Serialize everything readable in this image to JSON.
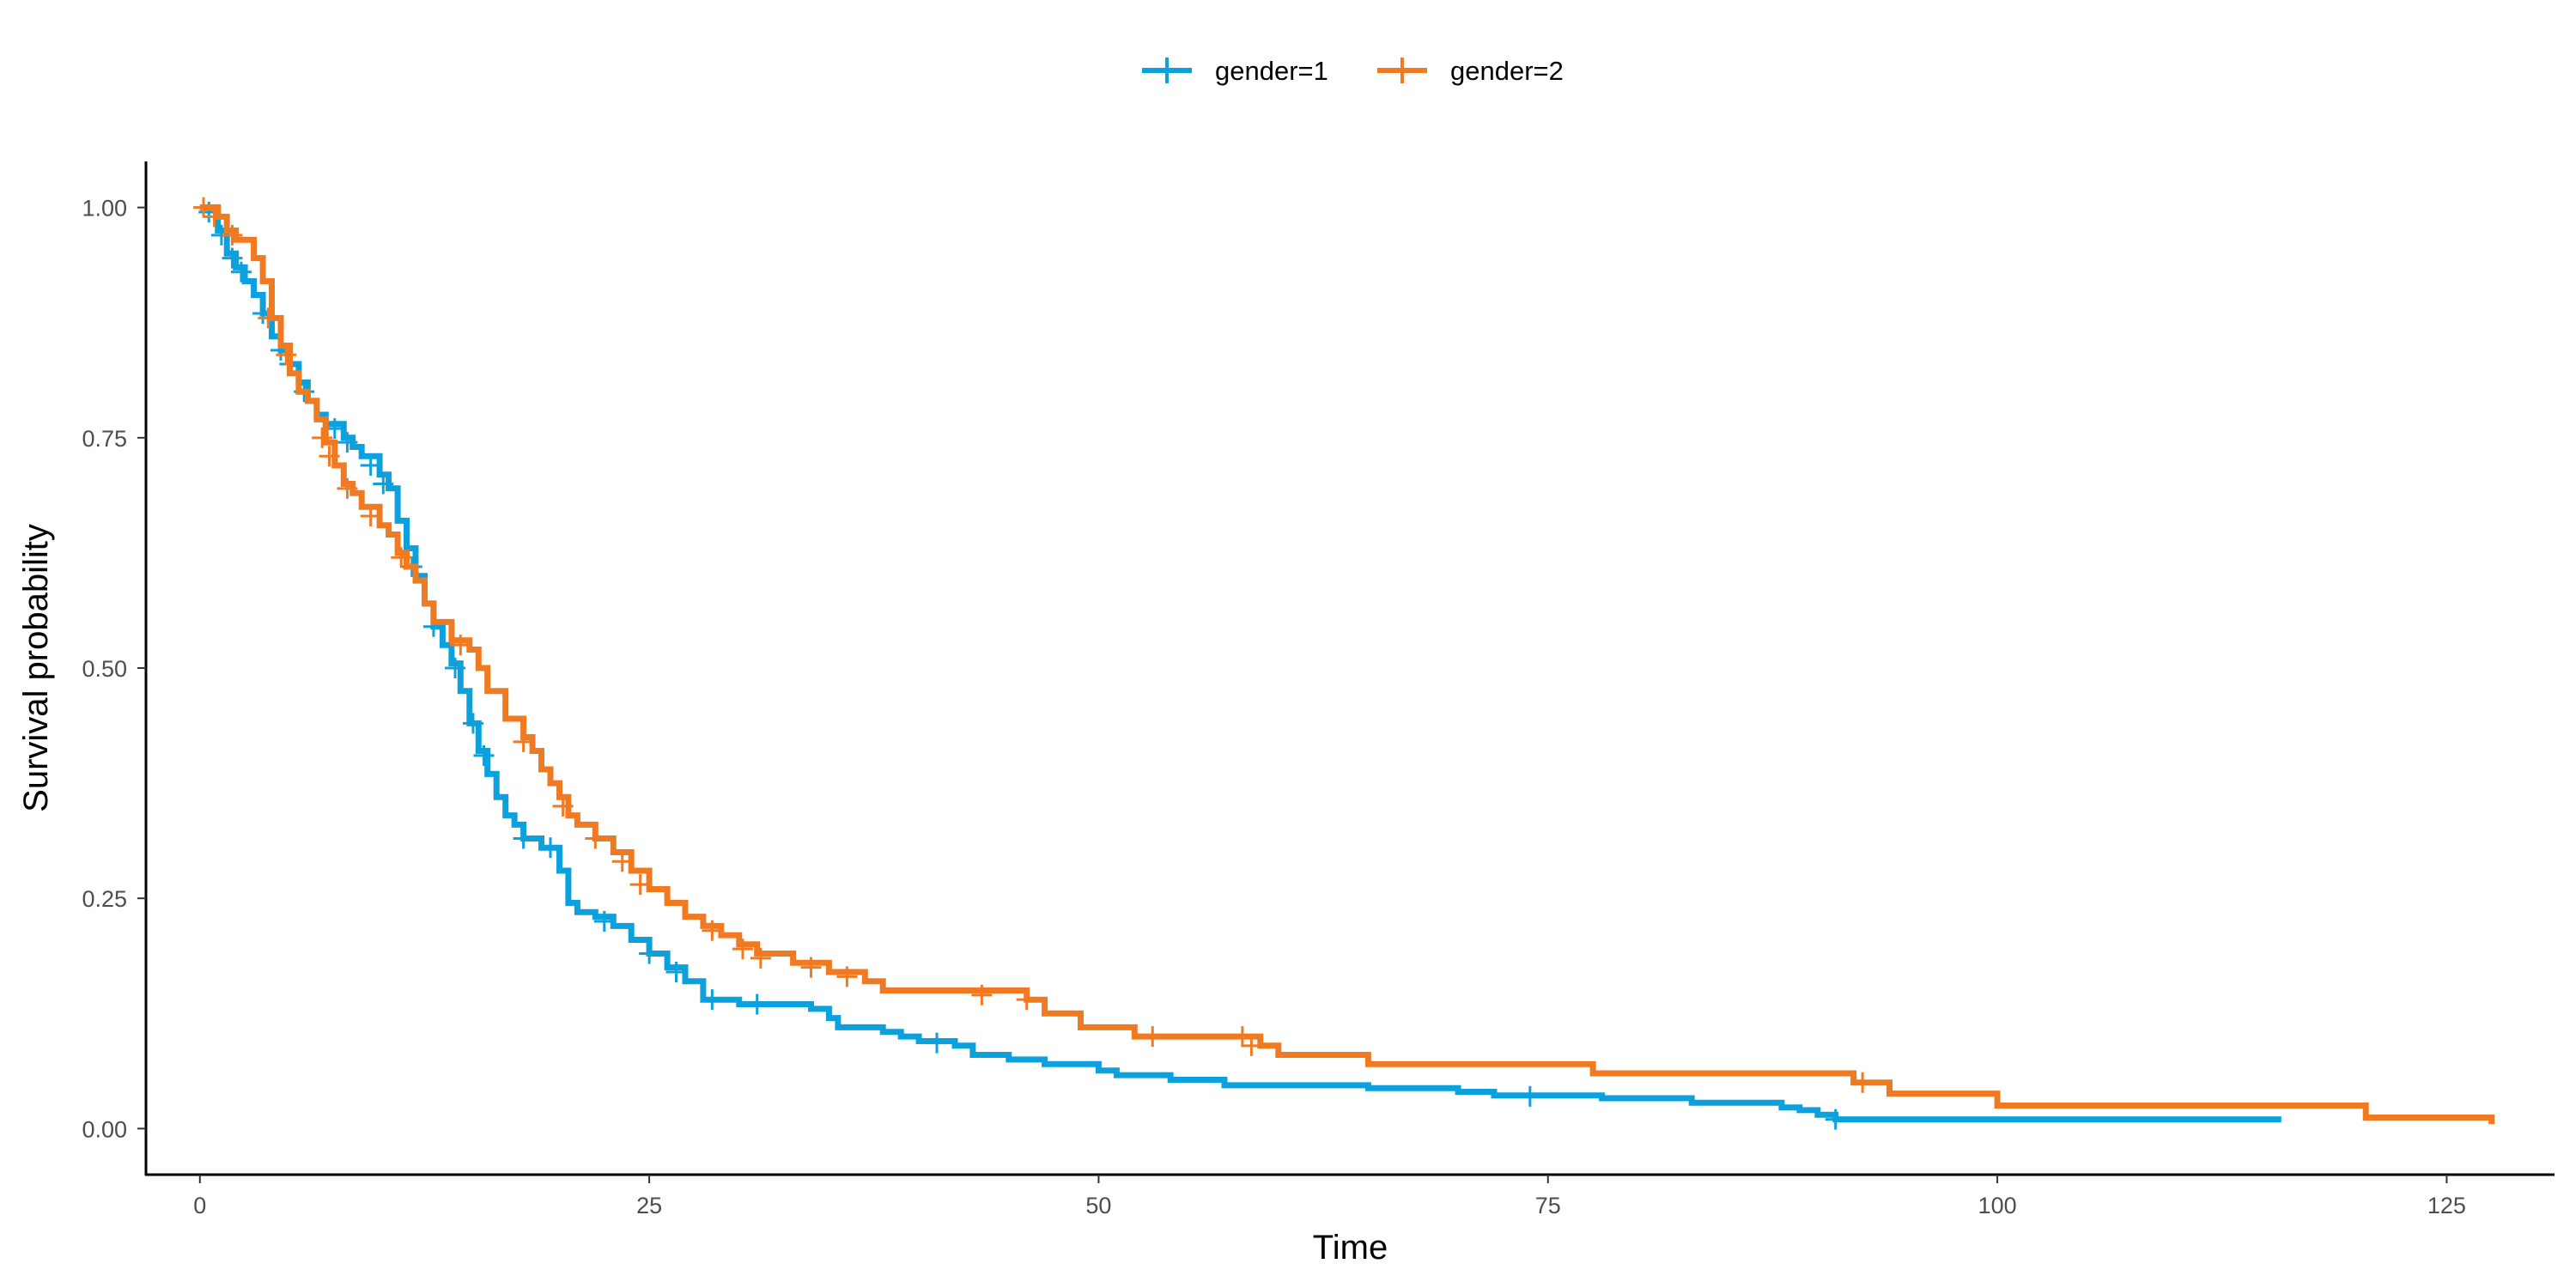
{
  "chart_data": {
    "type": "line",
    "subtype": "kaplan-meier step",
    "xlabel": "Time",
    "ylabel": "Survival probability",
    "xlim": [
      -3,
      131
    ],
    "ylim": [
      -0.05,
      1.05
    ],
    "xticks": [
      0,
      25,
      50,
      75,
      100,
      125
    ],
    "yticks": [
      0,
      0.25,
      0.5,
      0.75,
      1.0
    ],
    "ytick_labels": [
      "0.00",
      "0.25",
      "0.50",
      "0.75",
      "1.00"
    ],
    "grid": false,
    "legend": {
      "position": "top",
      "entries": [
        "gender=1",
        "gender=2"
      ]
    },
    "series": [
      {
        "name": "gender=1",
        "color": "#0CA1DD",
        "points": [
          [
            0,
            1.0
          ],
          [
            1,
            0.975
          ],
          [
            1.5,
            0.95
          ],
          [
            2,
            0.935
          ],
          [
            2.5,
            0.92
          ],
          [
            3,
            0.905
          ],
          [
            3.5,
            0.885
          ],
          [
            4,
            0.86
          ],
          [
            4.5,
            0.845
          ],
          [
            5,
            0.83
          ],
          [
            5.5,
            0.81
          ],
          [
            6,
            0.79
          ],
          [
            6.5,
            0.775
          ],
          [
            7,
            0.765
          ],
          [
            8,
            0.75
          ],
          [
            8.5,
            0.74
          ],
          [
            9,
            0.73
          ],
          [
            10,
            0.71
          ],
          [
            10.5,
            0.695
          ],
          [
            11,
            0.66
          ],
          [
            11.5,
            0.63
          ],
          [
            12,
            0.6
          ],
          [
            12.5,
            0.57
          ],
          [
            13,
            0.545
          ],
          [
            13.5,
            0.525
          ],
          [
            14,
            0.505
          ],
          [
            14.5,
            0.475
          ],
          [
            15,
            0.44
          ],
          [
            15.5,
            0.41
          ],
          [
            16,
            0.385
          ],
          [
            16.5,
            0.36
          ],
          [
            17,
            0.34
          ],
          [
            17.5,
            0.33
          ],
          [
            18,
            0.315
          ],
          [
            19,
            0.305
          ],
          [
            20,
            0.28
          ],
          [
            20.5,
            0.245
          ],
          [
            21,
            0.235
          ],
          [
            22,
            0.23
          ],
          [
            23,
            0.22
          ],
          [
            24,
            0.205
          ],
          [
            25,
            0.19
          ],
          [
            26,
            0.175
          ],
          [
            27,
            0.16
          ],
          [
            28,
            0.14
          ],
          [
            30,
            0.135
          ],
          [
            34,
            0.13
          ],
          [
            35,
            0.12
          ],
          [
            35.5,
            0.11
          ],
          [
            38,
            0.105
          ],
          [
            39,
            0.1
          ],
          [
            40,
            0.095
          ],
          [
            42,
            0.09
          ],
          [
            43,
            0.08
          ],
          [
            45,
            0.075
          ],
          [
            47,
            0.07
          ],
          [
            50,
            0.063
          ],
          [
            51,
            0.058
          ],
          [
            54,
            0.053
          ],
          [
            57,
            0.047
          ],
          [
            65,
            0.044
          ],
          [
            70,
            0.04
          ],
          [
            72,
            0.036
          ],
          [
            78,
            0.033
          ],
          [
            83,
            0.028
          ],
          [
            88,
            0.023
          ],
          [
            89,
            0.02
          ],
          [
            90,
            0.015
          ],
          [
            91,
            0.01
          ],
          [
            115.8,
            0.01
          ]
        ],
        "censored": [
          [
            0.5,
            0.995
          ],
          [
            1.2,
            0.97
          ],
          [
            1.8,
            0.945
          ],
          [
            2.3,
            0.93
          ],
          [
            3.5,
            0.885
          ],
          [
            4.5,
            0.845
          ],
          [
            5,
            0.83
          ],
          [
            5.8,
            0.8
          ],
          [
            7.5,
            0.76
          ],
          [
            8.2,
            0.745
          ],
          [
            9.5,
            0.72
          ],
          [
            10.2,
            0.7
          ],
          [
            11.8,
            0.61
          ],
          [
            13,
            0.545
          ],
          [
            14.2,
            0.5
          ],
          [
            15.2,
            0.44
          ],
          [
            15.8,
            0.405
          ],
          [
            18,
            0.315
          ],
          [
            19.5,
            0.305
          ],
          [
            22.5,
            0.225
          ],
          [
            25,
            0.19
          ],
          [
            26.5,
            0.17
          ],
          [
            28.5,
            0.14
          ],
          [
            31,
            0.135
          ],
          [
            41,
            0.093
          ],
          [
            74,
            0.035
          ],
          [
            91,
            0.01
          ]
        ]
      },
      {
        "name": "gender=2",
        "color": "#EF7A22",
        "points": [
          [
            0,
            1.0
          ],
          [
            1,
            0.99
          ],
          [
            1.5,
            0.975
          ],
          [
            2,
            0.965
          ],
          [
            3,
            0.945
          ],
          [
            3.5,
            0.92
          ],
          [
            4,
            0.88
          ],
          [
            4.5,
            0.85
          ],
          [
            5,
            0.82
          ],
          [
            5.5,
            0.8
          ],
          [
            6,
            0.79
          ],
          [
            6.5,
            0.77
          ],
          [
            7,
            0.745
          ],
          [
            7.5,
            0.72
          ],
          [
            8,
            0.7
          ],
          [
            8.5,
            0.69
          ],
          [
            9,
            0.675
          ],
          [
            10,
            0.655
          ],
          [
            10.5,
            0.645
          ],
          [
            11,
            0.625
          ],
          [
            11.5,
            0.61
          ],
          [
            12,
            0.595
          ],
          [
            12.5,
            0.57
          ],
          [
            13,
            0.55
          ],
          [
            14,
            0.53
          ],
          [
            15,
            0.52
          ],
          [
            15.5,
            0.5
          ],
          [
            16,
            0.475
          ],
          [
            17,
            0.445
          ],
          [
            18,
            0.425
          ],
          [
            18.5,
            0.41
          ],
          [
            19,
            0.39
          ],
          [
            19.5,
            0.375
          ],
          [
            20,
            0.36
          ],
          [
            20.5,
            0.34
          ],
          [
            21,
            0.33
          ],
          [
            22,
            0.315
          ],
          [
            23,
            0.3
          ],
          [
            24,
            0.28
          ],
          [
            25,
            0.26
          ],
          [
            26,
            0.245
          ],
          [
            27,
            0.23
          ],
          [
            28,
            0.22
          ],
          [
            29,
            0.21
          ],
          [
            30,
            0.2
          ],
          [
            31,
            0.19
          ],
          [
            33,
            0.18
          ],
          [
            35,
            0.17
          ],
          [
            37,
            0.16
          ],
          [
            38,
            0.15
          ],
          [
            46,
            0.14
          ],
          [
            47,
            0.125
          ],
          [
            49,
            0.11
          ],
          [
            52,
            0.1
          ],
          [
            59,
            0.09
          ],
          [
            60,
            0.08
          ],
          [
            65,
            0.07
          ],
          [
            77.5,
            0.06
          ],
          [
            92,
            0.05
          ],
          [
            94,
            0.038
          ],
          [
            100,
            0.025
          ],
          [
            120.5,
            0.012
          ],
          [
            127.5,
            0.005
          ]
        ],
        "censored": [
          [
            0.2,
            1.0
          ],
          [
            0.8,
            0.99
          ],
          [
            1.8,
            0.97
          ],
          [
            3.8,
            0.88
          ],
          [
            4.8,
            0.84
          ],
          [
            6.8,
            0.75
          ],
          [
            7.2,
            0.73
          ],
          [
            8.2,
            0.695
          ],
          [
            9.5,
            0.665
          ],
          [
            11.2,
            0.62
          ],
          [
            14.5,
            0.525
          ],
          [
            18,
            0.42
          ],
          [
            20.2,
            0.35
          ],
          [
            22,
            0.315
          ],
          [
            23.5,
            0.29
          ],
          [
            24.5,
            0.265
          ],
          [
            28.5,
            0.215
          ],
          [
            30.2,
            0.195
          ],
          [
            31.2,
            0.185
          ],
          [
            34,
            0.175
          ],
          [
            36,
            0.165
          ],
          [
            43.5,
            0.145
          ],
          [
            46,
            0.14
          ],
          [
            53,
            0.1
          ],
          [
            58,
            0.1
          ],
          [
            58.5,
            0.09
          ],
          [
            92.5,
            0.05
          ]
        ]
      }
    ]
  }
}
